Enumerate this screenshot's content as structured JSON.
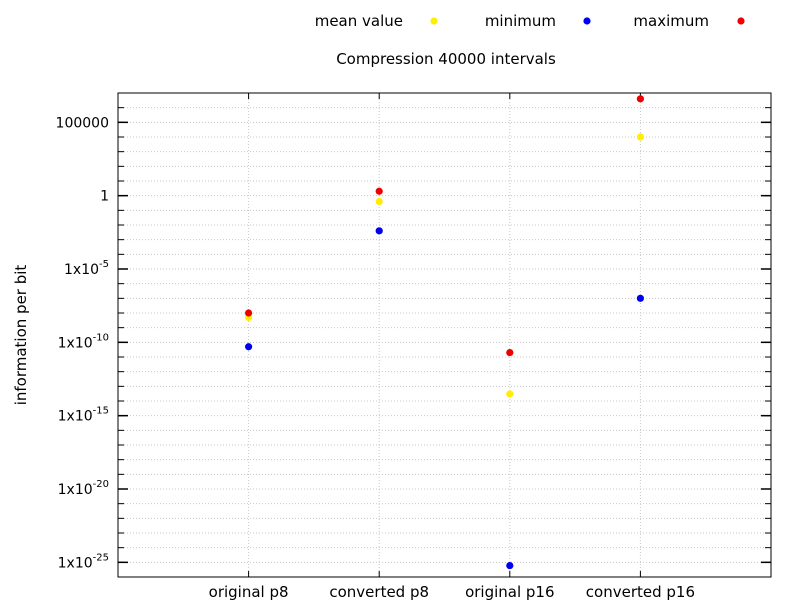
{
  "chart_data": {
    "type": "scatter",
    "title": "Compression 40000 intervals",
    "ylabel": "information per bit",
    "xlabel": "",
    "y_scale": "log",
    "ylim": [
      1e-26,
      10000000.0
    ],
    "grid": true,
    "legend_placement": "top",
    "categories": [
      "original p8",
      "converted p8",
      "original p16",
      "converted p16"
    ],
    "y_ticks": [
      {
        "value": 100000.0,
        "base": "100000",
        "exp": ""
      },
      {
        "value": 1,
        "base": "1",
        "exp": ""
      },
      {
        "value": 1e-05,
        "base": "1x10",
        "exp": "-5"
      },
      {
        "value": 1e-10,
        "base": "1x10",
        "exp": "-10"
      },
      {
        "value": 1e-15,
        "base": "1x10",
        "exp": "-15"
      },
      {
        "value": 1e-20,
        "base": "1x10",
        "exp": "-20"
      },
      {
        "value": 1e-25,
        "base": "1x10",
        "exp": "-25"
      }
    ],
    "series": [
      {
        "name": "mean value",
        "color": "#ffee00",
        "values": [
          5e-09,
          0.4,
          3e-14,
          10000.0
        ]
      },
      {
        "name": "minimum",
        "color": "#0000ee",
        "values": [
          5e-11,
          0.004,
          6e-26,
          1e-07
        ]
      },
      {
        "name": "maximum",
        "color": "#ee0000",
        "values": [
          1e-08,
          2,
          2e-11,
          4000000.0
        ]
      }
    ]
  }
}
